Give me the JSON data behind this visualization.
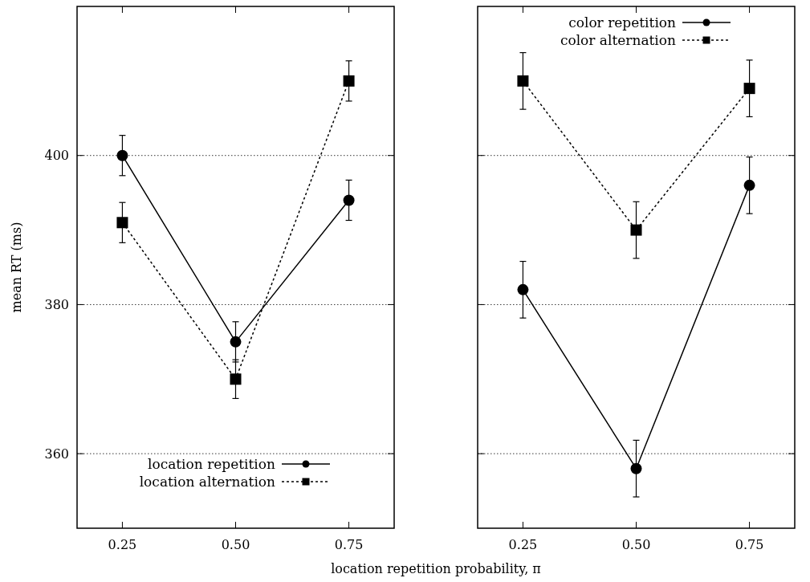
{
  "chart_data": [
    {
      "type": "line",
      "xlabel": "location repetition probability, π",
      "ylabel": "mean RT (ms)",
      "x": [
        0.25,
        0.5,
        0.75
      ],
      "xlim": [
        0.15,
        0.85
      ],
      "xticks": [
        {
          "value": 0.25,
          "label": "0.25"
        },
        {
          "value": 0.5,
          "label": "0.50"
        },
        {
          "value": 0.75,
          "label": "0.75"
        }
      ],
      "ylim": [
        350,
        420
      ],
      "yticks": [
        360,
        380,
        400
      ],
      "grid": "y",
      "legend": "bottom right",
      "series": [
        {
          "name": "location repetition",
          "color": "#000000",
          "marker": "circle",
          "line_style": "solid",
          "values": [
            400,
            375,
            394
          ],
          "errors": [
            2.7,
            2.7,
            2.7
          ]
        },
        {
          "name": "location alternation",
          "color": "#000000",
          "marker": "square",
          "line_style": "dashed",
          "values": [
            391,
            370,
            410
          ],
          "errors": [
            2.7,
            2.6,
            2.7
          ]
        }
      ]
    },
    {
      "type": "line",
      "x": [
        0.25,
        0.5,
        0.75
      ],
      "xlim": [
        0.15,
        0.85
      ],
      "xticks": [
        {
          "value": 0.25,
          "label": "0.25"
        },
        {
          "value": 0.5,
          "label": "0.50"
        },
        {
          "value": 0.75,
          "label": "0.75"
        }
      ],
      "ylim": [
        350,
        420
      ],
      "yticks": [
        360,
        380,
        400
      ],
      "tick_labels": "x",
      "grid": "y",
      "legend": "top right",
      "series": [
        {
          "name": "color repetition",
          "color": "#000000",
          "marker": "circle",
          "line_style": "solid",
          "values": [
            382,
            358,
            396
          ],
          "errors": [
            3.8,
            3.8,
            3.8
          ]
        },
        {
          "name": "color alternation",
          "color": "#000000",
          "marker": "square",
          "line_style": "dashed",
          "values": [
            410,
            390,
            409
          ],
          "errors": [
            3.8,
            3.8,
            3.8
          ]
        }
      ]
    }
  ]
}
